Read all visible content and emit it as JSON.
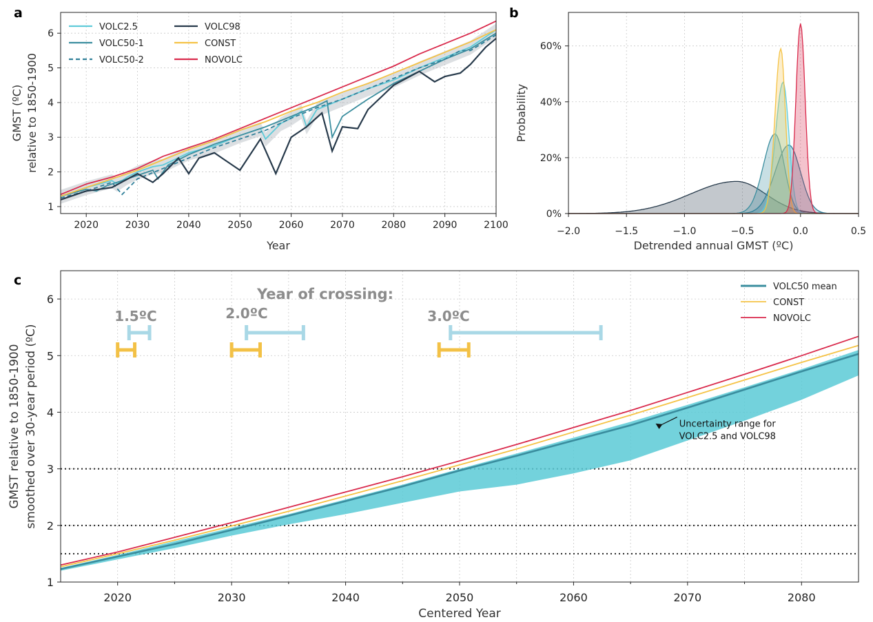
{
  "colors": {
    "volc25": "#5fcbd9",
    "volc50_1": "#3a8d9e",
    "volc50_2": "#2f7f99",
    "volc98": "#26394a",
    "const": "#f5c244",
    "novolc": "#d9294b",
    "band": "#5bcad6",
    "bar_const": "#f3c146",
    "bar_volc": "#a9d8e6",
    "annot_gray": "#8c8c8c"
  },
  "chart_data": [
    {
      "panel": "a",
      "type": "line",
      "xlabel": "Year",
      "ylabel": [
        "GMST (ºC)",
        "relative to 1850-1900"
      ],
      "xlim": [
        2015,
        2100
      ],
      "ylim": [
        0.8,
        6.6
      ],
      "xticks": [
        2020,
        2030,
        2040,
        2050,
        2060,
        2070,
        2080,
        2090,
        2100
      ],
      "yticks": [
        1,
        2,
        3,
        4,
        5,
        6
      ],
      "grid": true,
      "legend_position": "top-left",
      "series": [
        {
          "name": "VOLC2.5",
          "color_key": "volc25",
          "dash": false,
          "x": [
            2015,
            2020,
            2025,
            2026,
            2028,
            2030,
            2033,
            2035,
            2040,
            2045,
            2050,
            2054,
            2055,
            2058,
            2060,
            2062,
            2063,
            2065,
            2070,
            2075,
            2080,
            2085,
            2090,
            2095,
            2100
          ],
          "y": [
            1.3,
            1.55,
            1.75,
            1.65,
            1.85,
            2.0,
            2.15,
            2.2,
            2.55,
            2.75,
            3.05,
            3.25,
            2.95,
            3.4,
            3.55,
            3.75,
            3.3,
            3.8,
            4.1,
            4.4,
            4.65,
            5.0,
            5.3,
            5.6,
            6.1
          ]
        },
        {
          "name": "VOLC50-1",
          "color_key": "volc50_1",
          "dash": false,
          "x": [
            2015,
            2020,
            2022,
            2024,
            2027,
            2030,
            2033,
            2034,
            2036,
            2040,
            2045,
            2050,
            2055,
            2060,
            2065,
            2067,
            2068,
            2070,
            2073,
            2075,
            2080,
            2085,
            2090,
            2095,
            2100
          ],
          "y": [
            1.3,
            1.5,
            1.45,
            1.6,
            1.75,
            1.9,
            2.05,
            1.8,
            2.2,
            2.5,
            2.8,
            3.05,
            3.3,
            3.6,
            3.9,
            4.05,
            3.0,
            3.6,
            3.9,
            4.1,
            4.55,
            4.9,
            5.25,
            5.55,
            6.0
          ]
        },
        {
          "name": "VOLC50-2",
          "color_key": "volc50_2",
          "dash": true,
          "x": [
            2015,
            2020,
            2025,
            2027,
            2030,
            2035,
            2040,
            2045,
            2050,
            2055,
            2060,
            2065,
            2070,
            2075,
            2080,
            2085,
            2090,
            2093,
            2095,
            2100
          ],
          "y": [
            1.25,
            1.45,
            1.7,
            1.35,
            1.8,
            2.1,
            2.4,
            2.7,
            2.95,
            3.2,
            3.55,
            3.85,
            4.1,
            4.4,
            4.7,
            5.0,
            5.25,
            5.5,
            5.5,
            5.95
          ]
        },
        {
          "name": "VOLC98",
          "color_key": "volc98",
          "dash": false,
          "x": [
            2015,
            2020,
            2025,
            2030,
            2033,
            2035,
            2038,
            2040,
            2042,
            2045,
            2047,
            2050,
            2054,
            2057,
            2060,
            2063,
            2066,
            2068,
            2070,
            2073,
            2075,
            2080,
            2085,
            2088,
            2090,
            2093,
            2095,
            2098,
            2100
          ],
          "y": [
            1.2,
            1.45,
            1.55,
            1.95,
            1.7,
            1.95,
            2.4,
            1.95,
            2.4,
            2.55,
            2.35,
            2.05,
            2.95,
            1.95,
            3.0,
            3.3,
            3.7,
            2.6,
            3.3,
            3.25,
            3.8,
            4.5,
            4.9,
            4.6,
            4.75,
            4.85,
            5.1,
            5.6,
            5.85
          ]
        },
        {
          "name": "CONST",
          "color_key": "const",
          "dash": false,
          "x": [
            2015,
            2020,
            2025,
            2030,
            2035,
            2040,
            2045,
            2050,
            2055,
            2060,
            2065,
            2070,
            2075,
            2080,
            2085,
            2090,
            2095,
            2100
          ],
          "y": [
            1.3,
            1.55,
            1.8,
            2.05,
            2.35,
            2.65,
            2.9,
            3.2,
            3.45,
            3.75,
            4.0,
            4.3,
            4.55,
            4.85,
            5.15,
            5.45,
            5.75,
            6.1
          ]
        },
        {
          "name": "NOVOLC",
          "color_key": "novolc",
          "dash": false,
          "x": [
            2015,
            2020,
            2025,
            2030,
            2035,
            2040,
            2045,
            2050,
            2055,
            2060,
            2065,
            2070,
            2075,
            2080,
            2085,
            2090,
            2095,
            2100
          ],
          "y": [
            1.35,
            1.65,
            1.85,
            2.1,
            2.45,
            2.7,
            2.95,
            3.25,
            3.55,
            3.85,
            4.15,
            4.45,
            4.75,
            5.05,
            5.4,
            5.7,
            6.0,
            6.35
          ]
        }
      ]
    },
    {
      "panel": "b",
      "type": "area",
      "xlabel": "Detrended annual GMST (ºC)",
      "ylabel": "Probability",
      "xlim": [
        -2.0,
        0.5
      ],
      "ylim": [
        0,
        0.72
      ],
      "xticks": [
        -2.0,
        -1.5,
        -1.0,
        -0.5,
        0.0,
        0.5
      ],
      "xtick_labels": [
        "−2.0",
        "−1.5",
        "−1.0",
        "−0.5",
        "0.0",
        "0.5"
      ],
      "yticks": [
        0,
        0.2,
        0.4,
        0.6
      ],
      "ytick_labels": [
        "0%",
        "20%",
        "40%",
        "60%"
      ],
      "grid": true,
      "series": [
        {
          "name": "VOLC98",
          "color_key": "volc98",
          "center": -0.55,
          "sd_left": 0.4,
          "sd_right": 0.25,
          "peak": 0.115
        },
        {
          "name": "VOLC50-2",
          "color_key": "volc50_2",
          "center": -0.1,
          "sd_left": 0.12,
          "sd_right": 0.1,
          "peak": 0.245
        },
        {
          "name": "VOLC50-1",
          "color_key": "volc50_1",
          "center": -0.22,
          "sd_left": 0.1,
          "sd_right": 0.08,
          "peak": 0.285
        },
        {
          "name": "VOLC2.5",
          "color_key": "volc25",
          "center": -0.15,
          "sd_left": 0.065,
          "sd_right": 0.05,
          "peak": 0.47
        },
        {
          "name": "CONST",
          "color_key": "const",
          "center": -0.17,
          "sd_left": 0.05,
          "sd_right": 0.04,
          "peak": 0.59
        },
        {
          "name": "NOVOLC",
          "color_key": "novolc",
          "center": 0.0,
          "sd_left": 0.04,
          "sd_right": 0.04,
          "peak": 0.68
        }
      ]
    },
    {
      "panel": "c",
      "type": "line",
      "xlabel": "Centered Year",
      "ylabel": [
        "GMST relative to 1850-1900",
        "smoothed over 30-year period (ºC)"
      ],
      "xlim": [
        2015,
        2085
      ],
      "ylim": [
        1.0,
        6.5
      ],
      "xticks": [
        2020,
        2030,
        2040,
        2050,
        2060,
        2070,
        2080
      ],
      "minor_xticks": [
        2025,
        2035,
        2045,
        2055,
        2065,
        2075
      ],
      "yticks": [
        1,
        2,
        3,
        4,
        5,
        6
      ],
      "grid": true,
      "legend_position": "top-right",
      "hlines": [
        3.0,
        2.0,
        1.5
      ],
      "series": [
        {
          "name": "VOLC50 mean",
          "color_key": "volc50_1",
          "x": [
            2015,
            2020,
            2025,
            2030,
            2035,
            2040,
            2045,
            2050,
            2055,
            2060,
            2065,
            2070,
            2075,
            2080,
            2085
          ],
          "y": [
            1.23,
            1.45,
            1.67,
            1.92,
            2.17,
            2.43,
            2.69,
            2.97,
            3.23,
            3.5,
            3.77,
            4.08,
            4.4,
            4.72,
            5.03
          ]
        },
        {
          "name": "CONST",
          "color_key": "const",
          "x": [
            2015,
            2020,
            2025,
            2030,
            2035,
            2040,
            2045,
            2050,
            2055,
            2060,
            2065,
            2070,
            2075,
            2080,
            2085
          ],
          "y": [
            1.27,
            1.5,
            1.74,
            1.99,
            2.25,
            2.52,
            2.79,
            3.07,
            3.35,
            3.65,
            3.95,
            4.26,
            4.57,
            4.88,
            5.18
          ]
        },
        {
          "name": "NOVOLC",
          "color_key": "novolc",
          "x": [
            2015,
            2020,
            2025,
            2030,
            2035,
            2040,
            2045,
            2050,
            2055,
            2060,
            2065,
            2070,
            2075,
            2080,
            2085
          ],
          "y": [
            1.3,
            1.53,
            1.79,
            2.05,
            2.32,
            2.59,
            2.86,
            3.14,
            3.43,
            3.73,
            4.03,
            4.35,
            4.67,
            5.0,
            5.34
          ]
        }
      ],
      "band": {
        "x": [
          2015,
          2020,
          2025,
          2030,
          2035,
          2040,
          2045,
          2050,
          2055,
          2060,
          2065,
          2070,
          2075,
          2080,
          2085
        ],
        "upper": [
          1.25,
          1.48,
          1.72,
          1.96,
          2.2,
          2.46,
          2.72,
          3.0,
          3.27,
          3.55,
          3.83,
          4.13,
          4.44,
          4.76,
          5.1
        ],
        "lower": [
          1.2,
          1.4,
          1.6,
          1.82,
          2.02,
          2.2,
          2.4,
          2.6,
          2.72,
          2.92,
          3.15,
          3.5,
          3.85,
          4.22,
          4.65
        ]
      },
      "crossing": {
        "title": "Year of crossing:",
        "levels": [
          {
            "label": "1.5ºC",
            "const_range": [
              2020,
              2021.5
            ],
            "volc_range": [
              2021,
              2022.8
            ]
          },
          {
            "label": "2.0ºC",
            "const_range": [
              2030,
              2032.5
            ],
            "volc_range": [
              2031.3,
              2036.3
            ]
          },
          {
            "label": "3.0ºC",
            "const_range": [
              2048.2,
              2050.8
            ],
            "volc_range": [
              2049.2,
              2062.4
            ]
          }
        ]
      },
      "annotation": {
        "text": [
          "Uncertainty range for",
          "VOLC2.5 and VOLC98"
        ],
        "x": 2073.5,
        "y": 3.55,
        "arrow_to": [
          2067.2,
          3.8
        ]
      }
    }
  ],
  "legend_a": [
    "VOLC2.5",
    "VOLC50-1",
    "VOLC50-2",
    "VOLC98",
    "CONST",
    "NOVOLC"
  ],
  "legend_c": [
    "VOLC50 mean",
    "CONST",
    "NOVOLC"
  ]
}
